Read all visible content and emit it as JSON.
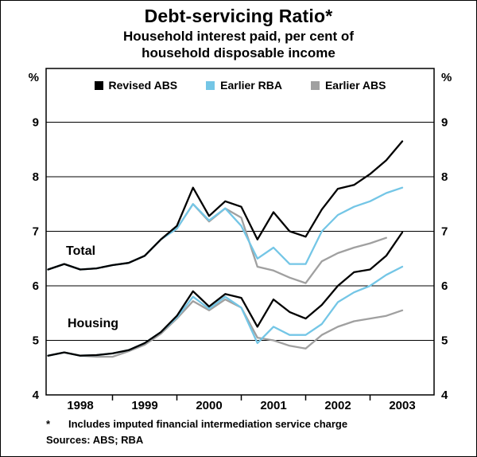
{
  "title": "Debt-servicing Ratio*",
  "subtitle": {
    "line1": "Household interest paid, per cent of",
    "line2": "household disposable income"
  },
  "legend": [
    {
      "label": "Revised ABS",
      "color": "#000000"
    },
    {
      "label": "Earlier RBA",
      "color": "#74c6e6"
    },
    {
      "label": "Earlier ABS",
      "color": "#a0a0a0"
    }
  ],
  "annotations": [
    {
      "text": "Total"
    },
    {
      "text": "Housing"
    }
  ],
  "footnote": {
    "marker": "*",
    "text": "Includes imputed financial intermediation service charge"
  },
  "sources": "Sources: ABS; RBA",
  "chart_data": {
    "type": "line",
    "unit": "%",
    "ylim": [
      4,
      9
    ],
    "y_ticks": [
      4,
      5,
      6,
      7,
      8,
      9
    ],
    "x_tick_labels": [
      "1998",
      "1999",
      "2000",
      "2001",
      "2002",
      "2003"
    ],
    "x_tick_years": [
      1999,
      2000,
      2001,
      2002,
      2003
    ],
    "grid": true,
    "legend_position": "top-inside",
    "x": [
      1998.0,
      1998.25,
      1998.5,
      1998.75,
      1999.0,
      1999.25,
      1999.5,
      1999.75,
      2000.0,
      2000.25,
      2000.5,
      2000.75,
      2001.0,
      2001.25,
      2001.5,
      2001.75,
      2002.0,
      2002.25,
      2002.5,
      2002.75,
      2003.0,
      2003.25,
      2003.5
    ],
    "series": [
      {
        "name": "Total - Revised ABS",
        "color": "#000000",
        "values": [
          6.3,
          6.4,
          6.3,
          6.32,
          6.38,
          6.42,
          6.55,
          6.85,
          7.1,
          7.8,
          7.28,
          7.55,
          7.45,
          6.85,
          7.35,
          7.0,
          6.9,
          7.4,
          7.78,
          7.85,
          8.05,
          8.3,
          8.65
        ]
      },
      {
        "name": "Total - Earlier RBA",
        "color": "#74c6e6",
        "values": [
          6.3,
          6.4,
          6.3,
          6.32,
          6.38,
          6.42,
          6.55,
          6.85,
          7.05,
          7.5,
          7.2,
          7.42,
          7.1,
          6.5,
          6.7,
          6.4,
          6.4,
          7.0,
          7.3,
          7.45,
          7.55,
          7.7,
          7.8
        ]
      },
      {
        "name": "Total - Earlier ABS",
        "color": "#a0a0a0",
        "values": [
          6.3,
          6.4,
          6.3,
          6.32,
          6.38,
          6.42,
          6.55,
          6.85,
          7.05,
          7.5,
          7.18,
          7.42,
          7.25,
          6.35,
          6.28,
          6.15,
          6.05,
          6.45,
          6.6,
          6.7,
          6.78,
          6.88,
          null
        ]
      },
      {
        "name": "Housing - Revised ABS",
        "color": "#000000",
        "values": [
          4.72,
          4.78,
          4.72,
          4.73,
          4.76,
          4.82,
          4.95,
          5.15,
          5.45,
          5.9,
          5.62,
          5.85,
          5.78,
          5.25,
          5.75,
          5.52,
          5.4,
          5.65,
          6.0,
          6.25,
          6.3,
          6.55,
          6.98
        ]
      },
      {
        "name": "Housing - Earlier RBA",
        "color": "#74c6e6",
        "values": [
          4.72,
          4.78,
          4.72,
          4.73,
          4.76,
          4.82,
          4.95,
          5.15,
          5.42,
          5.8,
          5.58,
          5.8,
          5.6,
          4.95,
          5.25,
          5.1,
          5.1,
          5.3,
          5.7,
          5.88,
          6.0,
          6.2,
          6.35
        ]
      },
      {
        "name": "Housing - Earlier ABS",
        "color": "#a0a0a0",
        "values": [
          4.72,
          4.78,
          4.72,
          4.7,
          4.7,
          4.8,
          4.92,
          5.12,
          5.4,
          5.72,
          5.55,
          5.75,
          5.6,
          5.05,
          5.0,
          4.9,
          4.85,
          5.1,
          5.25,
          5.35,
          5.4,
          5.45,
          5.55
        ]
      }
    ]
  }
}
